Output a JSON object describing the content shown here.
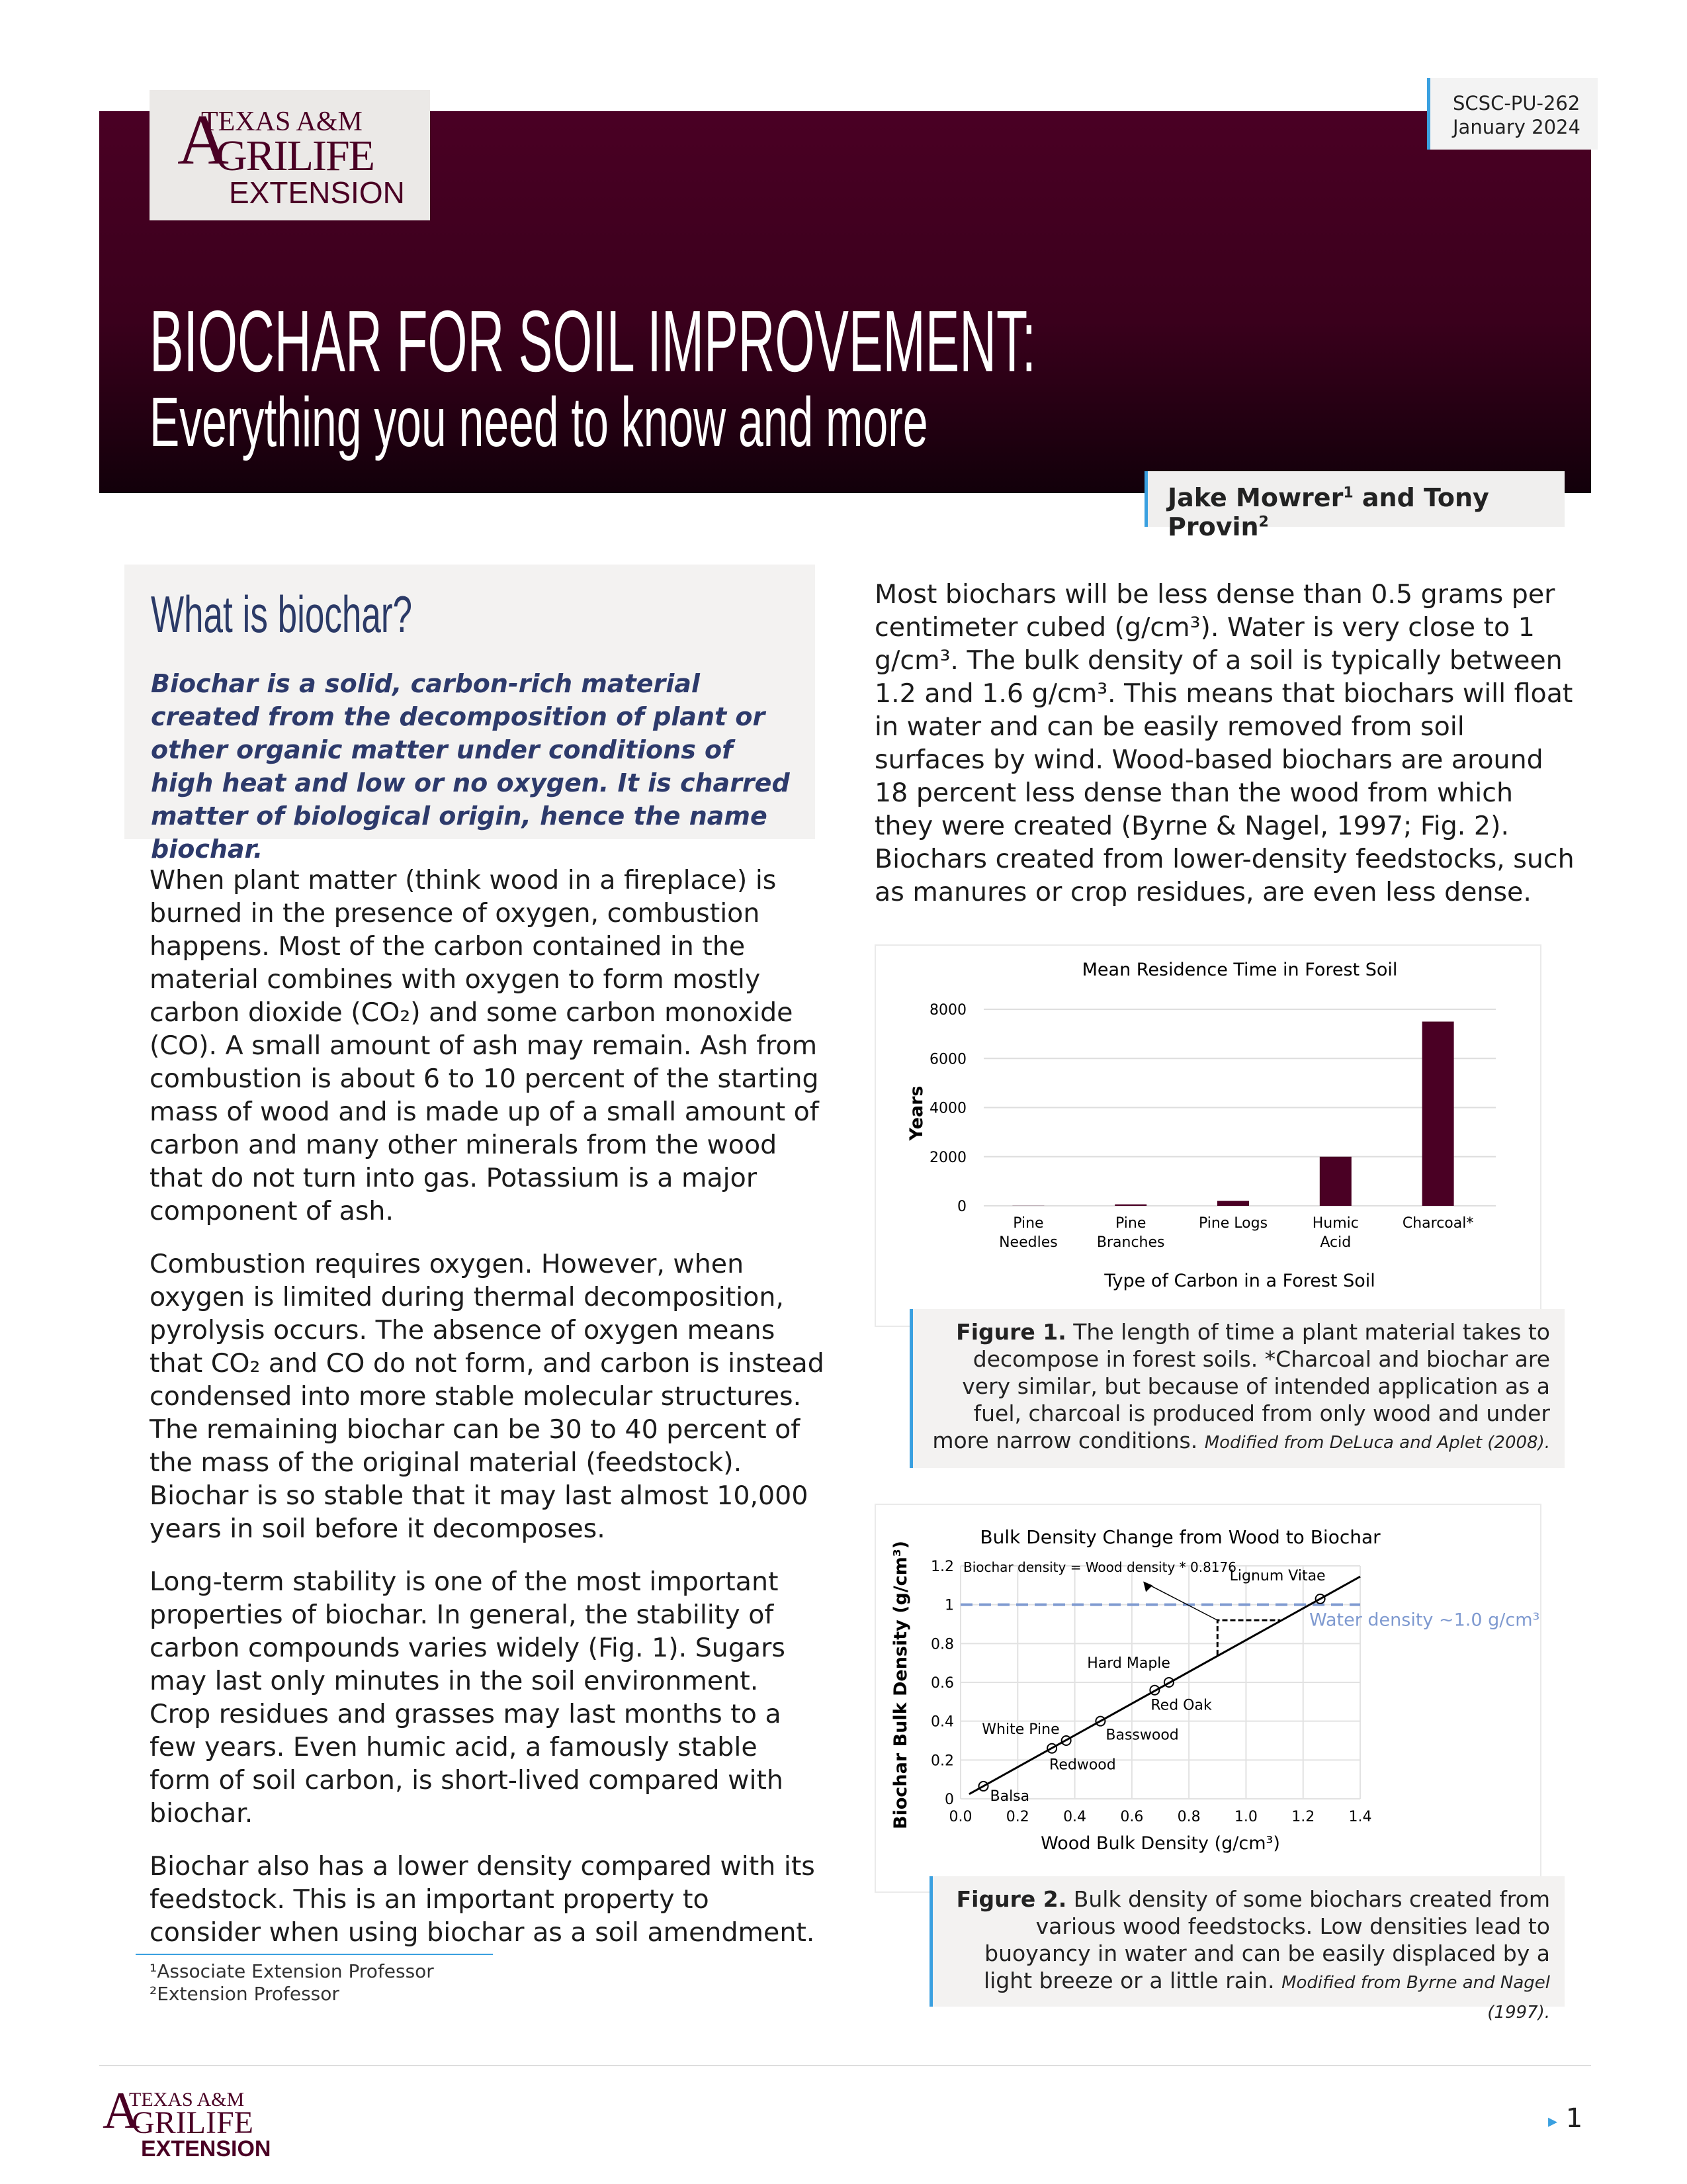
{
  "header": {
    "logo": {
      "line1": "TEXAS A&M",
      "line2": "AGRILIFE",
      "line3": "EXTENSION"
    },
    "code": "SCSC-PU-262",
    "date": "January 2024",
    "title": "BIOCHAR FOR SOIL IMPROVEMENT:",
    "subtitle": "Everything you need to know and more",
    "authors": {
      "a1": "Jake Mowrer",
      "s1": "1",
      "and": " and Tony Provin",
      "s2": "2"
    },
    "band_color": "#4a0024",
    "accent": "#3aa0e0"
  },
  "sidebar": {
    "heading": "What is biochar?",
    "text": "Biochar is a solid, carbon-rich material created from the decomposition of plant or other organic matter under conditions of high heat and low or no oxygen. It is charred matter of biological origin, hence the name biochar."
  },
  "left_paragraphs": [
    "When plant matter (think wood in a fireplace) is burned in the presence of oxygen, combustion happens. Most of the carbon contained in the material combines with oxygen to form mostly carbon dioxide (CO₂) and some carbon monoxide (CO). A small amount of ash may remain. Ash from combustion is about 6 to 10 percent of the starting mass of wood and is made up of a small amount of carbon and many other minerals from the wood that do not turn into gas. Potassium is a major component of ash.",
    "Combustion requires oxygen. However, when oxygen is limited during thermal decomposition, pyrolysis occurs. The absence of oxygen means that CO₂ and CO do not form, and carbon is instead condensed into more stable molecular structures. The remaining biochar can be 30 to 40 percent of the mass of the original material (feedstock). Biochar is so stable that it may last almost 10,000 years in soil before it decomposes.",
    "Long-term stability is one of the most important properties of biochar. In general, the stability of carbon compounds varies widely (Fig. 1). Sugars may last only minutes in the soil environment. Crop residues and grasses may last months to a few years. Even humic acid, a famously stable form of soil carbon, is short-lived compared with biochar.",
    "Biochar also has a lower density compared with its feedstock. This is an important property to consider when using biochar as a soil amendment."
  ],
  "right_paragraphs": [
    "Most biochars will be less dense than 0.5 grams per centimeter cubed (g/cm³). Water is very close to 1 g/cm³. The bulk density of a soil is typically between 1.2 and 1.6 g/cm³. This means that biochars will float in water and can be easily removed from soil surfaces by wind. Wood-based biochars are around 18 percent less dense than the wood from which they were created (Byrne & Nagel, 1997; Fig. 2). Biochars created from lower-density feedstocks, such as manures or crop residues, are even less dense."
  ],
  "figure1": {
    "label": "Figure 1.",
    "text": " The length of time a plant material takes to decompose in forest soils. *Charcoal and biochar are very similar, but because of intended application as a fuel, charcoal is produced from only wood and under more narrow conditions. ",
    "source": "Modified from DeLuca and Aplet (2008)."
  },
  "figure2": {
    "label": "Figure 2.",
    "text": " Bulk density of some biochars created from various wood feedstocks. Low densities lead to buoyancy in water and can be easily displaced by a light breeze or a little rain. ",
    "source": "Modified from Byrne and Nagel (1997)."
  },
  "footnotes": [
    "¹Associate Extension Professor",
    "²Extension Professor"
  ],
  "footer": {
    "page": "1",
    "marker": "▸"
  },
  "chart_data": [
    {
      "type": "bar",
      "title": "Mean Residence Time in Forest Soil",
      "xlabel": "Type of Carbon in a Forest Soil",
      "ylabel": "Years",
      "categories": [
        [
          "Pine",
          "Needles"
        ],
        [
          "Pine",
          "Branches"
        ],
        [
          "Pine Logs"
        ],
        [
          "Humic",
          "Acid"
        ],
        [
          "Charcoal*"
        ]
      ],
      "values": [
        5,
        60,
        200,
        2000,
        7500
      ],
      "ylim": [
        0,
        8000
      ],
      "yticks": [
        0,
        2000,
        4000,
        6000,
        8000
      ],
      "grid": true,
      "bar_color": "#4a0024"
    },
    {
      "type": "scatter",
      "title": "Bulk Density Change from Wood to Biochar",
      "xlabel": "Wood Bulk Density (g/cm³)",
      "ylabel": "Biochar Bulk Density (g/cm³)",
      "xlim": [
        0,
        1.4
      ],
      "ylim": [
        0,
        1.2
      ],
      "xticks": [
        "0.0",
        "0.2",
        "0.4",
        "0.6",
        "0.8",
        "1.0",
        "1.2",
        "1.4"
      ],
      "yticks": [
        "0",
        "0.2",
        "0.4",
        "0.6",
        "0.8",
        "1",
        "1.2"
      ],
      "grid": true,
      "points": [
        {
          "name": "Balsa",
          "x": 0.08,
          "y": 0.065
        },
        {
          "name": "Redwood",
          "x": 0.32,
          "y": 0.26
        },
        {
          "name": "White Pine",
          "x": 0.37,
          "y": 0.3
        },
        {
          "name": "Basswood",
          "x": 0.49,
          "y": 0.4
        },
        {
          "name": "Red Oak",
          "x": 0.68,
          "y": 0.56
        },
        {
          "name": "Hard Maple",
          "x": 0.73,
          "y": 0.6
        },
        {
          "name": "Lignum Vitae",
          "x": 1.26,
          "y": 1.03
        }
      ],
      "fit": {
        "label": "Biochar density = Wood density * 0.8176",
        "slope": 0.8176,
        "x_range": [
          0.03,
          1.4
        ]
      },
      "reference_line": {
        "label": "Water density ~1.0 g/cm³",
        "y": 1.0,
        "color": "#7f9ad0"
      }
    }
  ]
}
